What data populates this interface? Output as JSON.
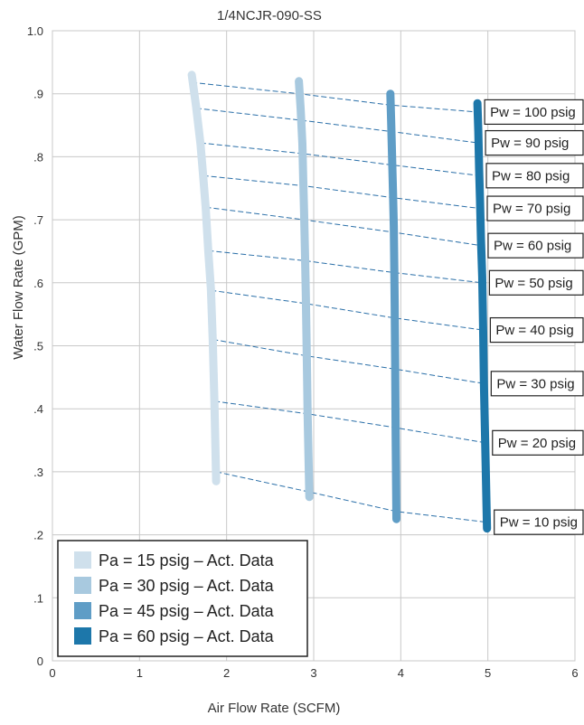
{
  "chart_data": {
    "type": "line",
    "title": "1/4NCJR-090-SS",
    "xlabel": "Air Flow Rate (SCFM)",
    "ylabel": "Water Flow Rate (GPM)",
    "xlim": [
      0,
      6
    ],
    "ylim": [
      0,
      1.0
    ],
    "x_ticks": [
      "0",
      "1",
      "2",
      "3",
      "4",
      "5",
      "6"
    ],
    "y_ticks": [
      "0",
      ".1",
      ".2",
      ".3",
      ".4",
      ".5",
      ".6",
      ".7",
      ".8",
      ".9",
      "1.0"
    ],
    "grid": true,
    "legend_position": "bottom-left",
    "series": [
      {
        "name": "Pa = 15 psig – Act. Data",
        "color": "#cfe0ec",
        "points": [
          [
            1.6,
            0.93
          ],
          [
            1.65,
            0.88
          ],
          [
            1.7,
            0.82
          ],
          [
            1.73,
            0.77
          ],
          [
            1.76,
            0.72
          ],
          [
            1.79,
            0.65
          ],
          [
            1.82,
            0.59
          ],
          [
            1.84,
            0.51
          ],
          [
            1.86,
            0.41
          ],
          [
            1.88,
            0.285
          ]
        ]
      },
      {
        "name": "Pa = 30 psig – Act. Data",
        "color": "#a8c9df",
        "points": [
          [
            2.83,
            0.92
          ],
          [
            2.85,
            0.875
          ],
          [
            2.87,
            0.82
          ],
          [
            2.88,
            0.765
          ],
          [
            2.89,
            0.71
          ],
          [
            2.9,
            0.645
          ],
          [
            2.91,
            0.58
          ],
          [
            2.92,
            0.49
          ],
          [
            2.93,
            0.39
          ],
          [
            2.95,
            0.26
          ]
        ]
      },
      {
        "name": "Pa = 45 psig – Act. Data",
        "color": "#5f9dc6",
        "points": [
          [
            3.88,
            0.9
          ],
          [
            3.89,
            0.855
          ],
          [
            3.9,
            0.8
          ],
          [
            3.91,
            0.745
          ],
          [
            3.92,
            0.69
          ],
          [
            3.925,
            0.63
          ],
          [
            3.93,
            0.565
          ],
          [
            3.935,
            0.48
          ],
          [
            3.94,
            0.37
          ],
          [
            3.95,
            0.225
          ]
        ]
      },
      {
        "name": "Pa = 60 psig – Act. Data",
        "color": "#1d77aa",
        "points": [
          [
            4.88,
            0.885
          ],
          [
            4.89,
            0.84
          ],
          [
            4.9,
            0.78
          ],
          [
            4.91,
            0.73
          ],
          [
            4.92,
            0.67
          ],
          [
            4.935,
            0.61
          ],
          [
            4.945,
            0.53
          ],
          [
            4.955,
            0.44
          ],
          [
            4.97,
            0.34
          ],
          [
            4.99,
            0.21
          ]
        ]
      }
    ],
    "isobars": [
      {
        "label": "Pw = 100 psig",
        "points": [
          [
            1.6,
            0.918
          ],
          [
            2.83,
            0.9
          ],
          [
            3.88,
            0.882
          ],
          [
            4.88,
            0.871
          ]
        ]
      },
      {
        "label": "Pw = 90 psig",
        "points": [
          [
            1.65,
            0.877
          ],
          [
            2.85,
            0.858
          ],
          [
            3.89,
            0.84
          ],
          [
            4.89,
            0.822
          ]
        ]
      },
      {
        "label": "Pw = 80 psig",
        "points": [
          [
            1.7,
            0.822
          ],
          [
            2.87,
            0.805
          ],
          [
            3.9,
            0.787
          ],
          [
            4.9,
            0.77
          ]
        ]
      },
      {
        "label": "Pw = 70 psig",
        "points": [
          [
            1.73,
            0.77
          ],
          [
            2.88,
            0.754
          ],
          [
            3.91,
            0.735
          ],
          [
            4.91,
            0.718
          ]
        ]
      },
      {
        "label": "Pw = 60 psig",
        "points": [
          [
            1.76,
            0.72
          ],
          [
            2.89,
            0.7
          ],
          [
            3.92,
            0.68
          ],
          [
            4.92,
            0.659
          ]
        ]
      },
      {
        "label": "Pw = 50 psig",
        "points": [
          [
            1.79,
            0.651
          ],
          [
            2.9,
            0.635
          ],
          [
            3.925,
            0.616
          ],
          [
            4.935,
            0.6
          ]
        ]
      },
      {
        "label": "Pw = 40 psig",
        "points": [
          [
            1.82,
            0.588
          ],
          [
            2.91,
            0.567
          ],
          [
            3.93,
            0.544
          ],
          [
            4.945,
            0.525
          ]
        ]
      },
      {
        "label": "Pw = 30 psig",
        "points": [
          [
            1.84,
            0.51
          ],
          [
            2.92,
            0.484
          ],
          [
            3.935,
            0.463
          ],
          [
            4.955,
            0.44
          ]
        ]
      },
      {
        "label": "Pw = 20 psig",
        "points": [
          [
            1.86,
            0.412
          ],
          [
            2.93,
            0.392
          ],
          [
            3.94,
            0.37
          ],
          [
            4.97,
            0.346
          ]
        ]
      },
      {
        "label": "Pw = 10 psig",
        "points": [
          [
            1.88,
            0.3
          ],
          [
            2.95,
            0.268
          ],
          [
            3.95,
            0.237
          ],
          [
            4.99,
            0.22
          ]
        ]
      }
    ]
  }
}
